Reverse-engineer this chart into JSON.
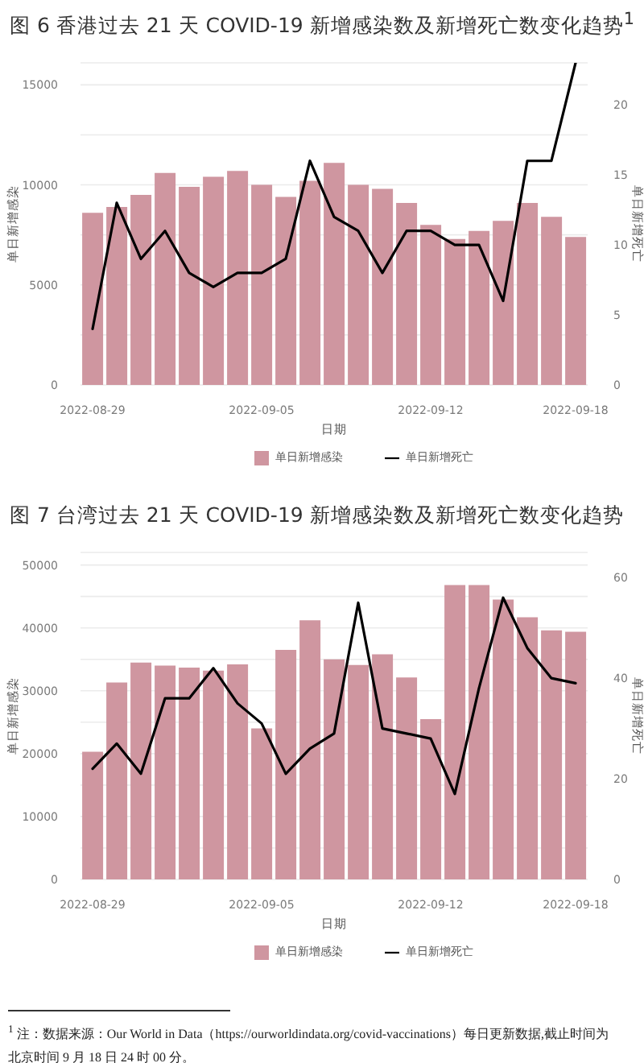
{
  "chart_data": [
    {
      "type": "bar",
      "title": "图 6 香港过去 21 天 COVID-19 新增感染数及新增死亡数变化趋势$^{1}$",
      "xlabel": "日期",
      "ylabel": "单日新增感染",
      "y2label": "单日新增死亡",
      "categories": [
        "2022-08-29",
        null,
        null,
        null,
        null,
        null,
        null,
        "2022-09-05",
        null,
        null,
        null,
        null,
        null,
        null,
        "2022-09-12",
        null,
        null,
        null,
        null,
        null,
        "2022-09-18"
      ],
      "series": [
        {
          "name": "单日新增感染",
          "color": "#cf96a0",
          "values": [
            8600,
            8900,
            9500,
            10600,
            9900,
            10400,
            10700,
            10000,
            9400,
            10200,
            11100,
            10000,
            9800,
            9100,
            8000,
            7300,
            7700,
            8200,
            9100,
            8400,
            7400
          ]
        },
        {
          "name": "单日新增死亡",
          "type": "line",
          "color": "#000000",
          "axis": "y2",
          "values": [
            4,
            13,
            9,
            11,
            8,
            7,
            8,
            8,
            9,
            16,
            12,
            11,
            8,
            11,
            11,
            10,
            10,
            6,
            16,
            16,
            23
          ]
        }
      ],
      "ylim": [
        0,
        16100
      ],
      "yticks": [
        0,
        {
          "value": 2500,
          "label": null
        },
        5000,
        {
          "value": 7500,
          "label": null
        },
        10000,
        {
          "value": 12500,
          "label": null
        },
        15000
      ],
      "y2lim": [
        0,
        23
      ],
      "y2ticks": [
        0,
        5,
        10,
        15,
        20
      ],
      "grid": "y",
      "legend": "bottom"
    },
    {
      "type": "bar",
      "title": "图 7 台湾过去 21 天 COVID-19 新增感染数及新增死亡数变化趋势",
      "xlabel": "日期",
      "ylabel": "单日新增感染",
      "y2label": "单日新增死亡",
      "categories": [
        "2022-08-29",
        null,
        null,
        null,
        null,
        null,
        null,
        "2022-09-05",
        null,
        null,
        null,
        null,
        null,
        null,
        "2022-09-12",
        null,
        null,
        null,
        null,
        null,
        "2022-09-18"
      ],
      "series": [
        {
          "name": "单日新增感染",
          "color": "#cf96a0",
          "values": [
            20300,
            31300,
            34500,
            34000,
            33700,
            33200,
            34200,
            24000,
            36500,
            41200,
            35000,
            34100,
            35800,
            32100,
            25500,
            46800,
            46800,
            44500,
            41700,
            39600,
            39400
          ]
        },
        {
          "name": "单日新增死亡",
          "type": "line",
          "color": "#000000",
          "axis": "y2",
          "values": [
            22,
            27,
            21,
            36,
            36,
            42,
            35,
            31,
            21,
            26,
            29,
            55,
            30,
            29,
            28,
            17,
            38,
            56,
            46,
            40,
            39
          ]
        }
      ],
      "ylim": [
        0,
        52000
      ],
      "yticks": [
        0,
        {
          "value": 5000,
          "label": null
        },
        10000,
        {
          "value": 15000,
          "label": null
        },
        20000,
        {
          "value": 25000,
          "label": null
        },
        30000,
        {
          "value": 35000,
          "label": null
        },
        40000,
        {
          "value": 45000,
          "label": null
        },
        50000
      ],
      "y2lim": [
        0,
        65
      ],
      "y2ticks": [
        0,
        20,
        40,
        60
      ],
      "grid": "y",
      "legend": "bottom",
      "annotations": [
        "$^{1}$ 注：数据来源：Our World in Data（https://ourworldindata.org/covid-vaccinations）每日更新数据,截止时间为北京时间 9 月 18 日 24 时 00 分。"
      ]
    }
  ]
}
